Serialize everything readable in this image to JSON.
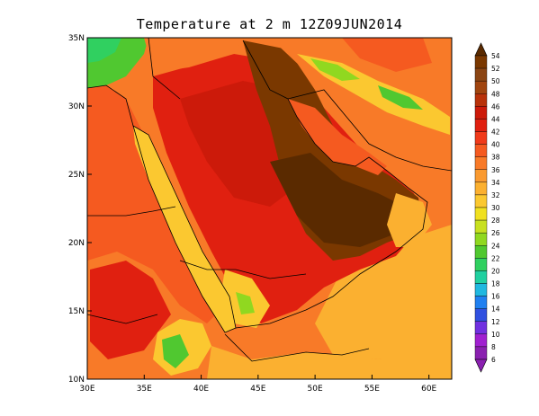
{
  "title": "Temperature at 2 m 12Z09JUN2014",
  "map": {
    "lon_range": [
      30,
      62
    ],
    "lat_range": [
      10,
      35
    ],
    "x_ticks": [
      "30E",
      "35E",
      "40E",
      "45E",
      "50E",
      "55E",
      "60E"
    ],
    "x_tick_values": [
      30,
      35,
      40,
      45,
      50,
      55,
      60
    ],
    "y_ticks": [
      "35N",
      "30N",
      "25N",
      "20N",
      "15N",
      "10N"
    ],
    "y_tick_values": [
      35,
      30,
      25,
      20,
      15,
      10
    ],
    "variable": "Temperature at 2 m",
    "time": "12Z09JUN2014"
  },
  "colorbar": {
    "labels": [
      "54",
      "52",
      "50",
      "48",
      "46",
      "44",
      "42",
      "40",
      "38",
      "36",
      "34",
      "32",
      "30",
      "28",
      "26",
      "24",
      "22",
      "20",
      "18",
      "16",
      "14",
      "12",
      "10",
      "8",
      "6"
    ],
    "colors": [
      "#5a2a00",
      "#7a3800",
      "#8b4513",
      "#a0450f",
      "#b8320a",
      "#cc1a0a",
      "#e02010",
      "#f03a1a",
      "#f55a20",
      "#f87a28",
      "#fa9a30",
      "#fbb030",
      "#fbc830",
      "#f0e020",
      "#c8e020",
      "#90d820",
      "#50c830",
      "#30d060",
      "#20d0a0",
      "#20b8e0",
      "#2080f0",
      "#3050e0",
      "#7030e0",
      "#a020d0",
      "#8a20b0"
    ]
  }
}
